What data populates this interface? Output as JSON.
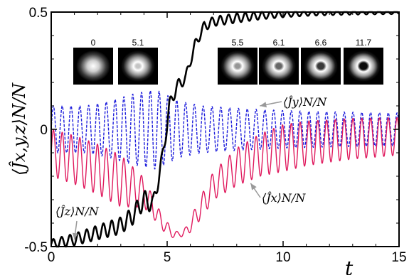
{
  "chart_data": {
    "type": "line",
    "xlabel": "t",
    "ylabel": "⟨Ĵx,y,z⟩N/N",
    "xlim": [
      0,
      15
    ],
    "ylim": [
      -0.5,
      0.5
    ],
    "x_ticks": [
      "0",
      "5",
      "10",
      "15"
    ],
    "y_ticks": [
      "-0.5",
      "0",
      "0.5"
    ],
    "grid": false,
    "series": [
      {
        "name": "⟨Ĵz⟩N/N",
        "color": "#000000",
        "style": "solid",
        "points": [
          [
            0,
            -0.49
          ],
          [
            1,
            -0.47
          ],
          [
            2,
            -0.44
          ],
          [
            3,
            -0.41
          ],
          [
            3.5,
            -0.37
          ],
          [
            4,
            -0.3
          ],
          [
            4.4,
            -0.32
          ],
          [
            4.8,
            -0.12
          ],
          [
            5.1,
            0.1
          ],
          [
            5.4,
            0.18
          ],
          [
            5.8,
            0.22
          ],
          [
            6.2,
            0.36
          ],
          [
            6.6,
            0.44
          ],
          [
            7,
            0.46
          ],
          [
            8,
            0.475
          ],
          [
            9,
            0.485
          ],
          [
            10,
            0.49
          ],
          [
            11,
            0.495
          ],
          [
            12,
            0.497
          ],
          [
            13,
            0.498
          ],
          [
            14,
            0.498
          ],
          [
            15,
            0.498
          ]
        ],
        "oscillation_amplitude": [
          [
            0,
            0.02
          ],
          [
            4,
            0.04
          ],
          [
            6,
            0.02
          ],
          [
            8,
            0.02
          ],
          [
            10,
            0.012
          ],
          [
            15,
            0.006
          ]
        ],
        "oscillation_period": 0.36
      },
      {
        "name": "⟨Ĵy⟩N/N",
        "color": "#1f1fdc",
        "style": "dashed",
        "points": [
          [
            0,
            0
          ],
          [
            5,
            0
          ],
          [
            10,
            0
          ],
          [
            15,
            0
          ]
        ],
        "oscillation_amplitude": [
          [
            0,
            0.1
          ],
          [
            1.5,
            0.1
          ],
          [
            2.5,
            0.12
          ],
          [
            3.5,
            0.15
          ],
          [
            4.5,
            0.17
          ],
          [
            5.5,
            0.12
          ],
          [
            6.5,
            0.1
          ],
          [
            8,
            0.09
          ],
          [
            10,
            0.08
          ],
          [
            12,
            0.075
          ],
          [
            15,
            0.07
          ]
        ],
        "oscillation_period": 0.38
      },
      {
        "name": "⟨Ĵx⟩N/N",
        "color": "#e01a5e",
        "style": "solid",
        "points": [
          [
            0,
            -0.1
          ],
          [
            1,
            -0.13
          ],
          [
            2,
            -0.17
          ],
          [
            3,
            -0.22
          ],
          [
            4,
            -0.27
          ],
          [
            4.8,
            -0.4
          ],
          [
            5.3,
            -0.45
          ],
          [
            5.8,
            -0.44
          ],
          [
            6.3,
            -0.36
          ],
          [
            7,
            -0.24
          ],
          [
            8,
            -0.16
          ],
          [
            9,
            -0.11
          ],
          [
            10,
            -0.08
          ],
          [
            11,
            -0.06
          ],
          [
            12,
            -0.05
          ],
          [
            13,
            -0.04
          ],
          [
            15,
            -0.03
          ]
        ],
        "oscillation_amplitude": [
          [
            0,
            0.1
          ],
          [
            3,
            0.11
          ],
          [
            4.5,
            0.04
          ],
          [
            5.5,
            0.01
          ],
          [
            6.5,
            0.05
          ],
          [
            8,
            0.08
          ],
          [
            10,
            0.1
          ],
          [
            12,
            0.09
          ],
          [
            15,
            0.08
          ]
        ],
        "oscillation_period": 0.38
      }
    ],
    "annotations": [
      {
        "text": "⟨Ĵy⟩N/N",
        "target_x": 9.0,
        "target_y": 0.1
      },
      {
        "text": "⟨Ĵx⟩N/N",
        "target_x": 8.6,
        "target_y": -0.23
      },
      {
        "text": "⟨Ĵz⟩N/N",
        "target_x": 1.0,
        "target_y": -0.47
      }
    ],
    "insets": [
      {
        "label": "0",
        "ring": 0.0
      },
      {
        "label": "5.1",
        "ring": 0.15
      },
      {
        "label": "5.5",
        "ring": 0.35
      },
      {
        "label": "6.1",
        "ring": 0.55
      },
      {
        "label": "6.6",
        "ring": 0.75
      },
      {
        "label": "11.7",
        "ring": 0.95
      }
    ]
  }
}
